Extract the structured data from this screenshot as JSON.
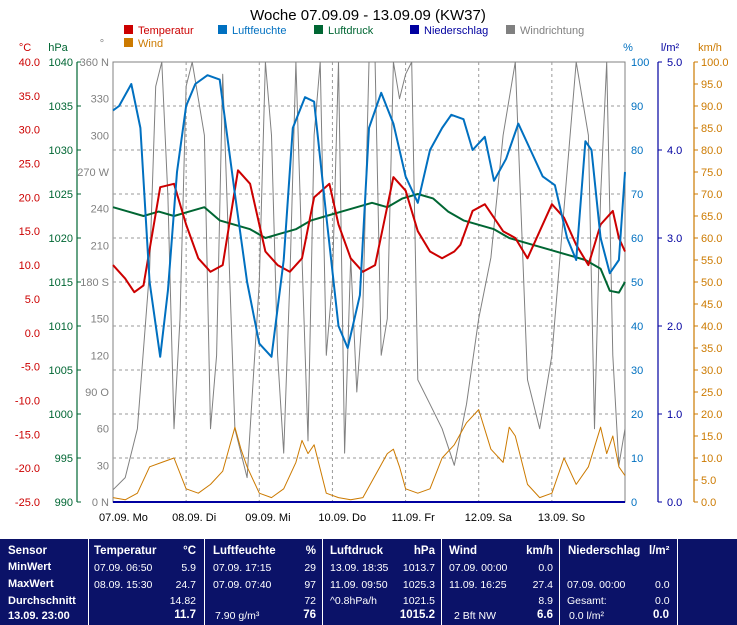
{
  "chart_data": {
    "type": "line",
    "title": "Woche 07.09.09 - 13.09.09 (KW37)",
    "x_tick_labels": [
      "07.09.  Mo",
      "08.09.  Di",
      "09.09.  Mi",
      "10.09.  Do",
      "11.09.  Fr",
      "12.09.  Sa",
      "13.09.  So"
    ],
    "x_unit": "hours since 07.09.09 00:00",
    "xlim": [
      0,
      168
    ],
    "grid": true,
    "legend_placement": "top",
    "axes": [
      {
        "id": "temp",
        "unit": "°C",
        "color": "#cc0000",
        "lim": [
          -25,
          40
        ],
        "ticks": [
          "40.0",
          "35.0",
          "30.0",
          "25.0",
          "20.0",
          "15.0",
          "10.0",
          "5.0",
          "0.0",
          "-5.0",
          "-10.0",
          "-15.0",
          "-20.0",
          "-25.0"
        ]
      },
      {
        "id": "press",
        "unit": "hPa",
        "color": "#006633",
        "lim": [
          990,
          1040
        ],
        "ticks": [
          "1040",
          "1035",
          "1030",
          "1025",
          "1020",
          "1015",
          "1010",
          "1005",
          "1000",
          "995",
          "990"
        ]
      },
      {
        "id": "dir",
        "unit": "°",
        "color": "#808080",
        "lim": [
          0,
          360
        ],
        "ticks": [
          "360 N",
          "330",
          "300",
          "270 W",
          "240",
          "210",
          "180 S",
          "150",
          "120",
          "90  O",
          "60",
          "30",
          "0  N"
        ]
      },
      {
        "id": "hum",
        "unit": "%",
        "color": "#0070c0",
        "lim": [
          0,
          100
        ],
        "ticks": [
          "100",
          "90",
          "80",
          "70",
          "60",
          "50",
          "40",
          "30",
          "20",
          "10",
          "0"
        ]
      },
      {
        "id": "rain",
        "unit": "l/m²",
        "color": "#0000a0",
        "lim": [
          0,
          5
        ],
        "ticks": [
          "5.0",
          "4.0",
          "3.0",
          "2.0",
          "1.0",
          "0.0"
        ]
      },
      {
        "id": "wind",
        "unit": "km/h",
        "color": "#cc7a00",
        "lim": [
          0,
          100
        ],
        "ticks": [
          "100.0",
          "95.0",
          "90.0",
          "85.0",
          "80.0",
          "75.0",
          "70.0",
          "65.0",
          "60.0",
          "55.0",
          "50.0",
          "45.0",
          "40.0",
          "35.0",
          "30.0",
          "25.0",
          "20.0",
          "15.0",
          "10.0",
          "5.0",
          "0.0"
        ]
      }
    ],
    "legend": [
      {
        "name": "Temperatur",
        "color": "#cc0000"
      },
      {
        "name": "Luftfeuchte",
        "color": "#0070c0"
      },
      {
        "name": "Luftdruck",
        "color": "#006633"
      },
      {
        "name": "Niederschlag",
        "color": "#0000a0"
      },
      {
        "name": "Windrichtung",
        "color": "#808080"
      },
      {
        "name": "Wind",
        "color": "#cc7a00"
      }
    ],
    "series": [
      {
        "name": "Temperatur",
        "axis": "temp",
        "color": "#cc0000",
        "x": [
          0,
          4,
          7,
          10,
          15.5,
          20,
          24,
          28,
          32,
          36,
          41,
          45,
          50,
          54,
          58,
          62,
          66,
          71,
          74,
          78,
          82,
          86,
          92,
          96,
          100,
          104,
          108,
          112,
          114,
          118,
          122,
          128,
          132,
          136,
          140,
          144,
          148,
          152,
          156,
          160,
          164,
          166,
          168
        ],
        "y": [
          10,
          8,
          6,
          7,
          21.5,
          22,
          16,
          11,
          9,
          10,
          24,
          22,
          12,
          10,
          9,
          11,
          20,
          22,
          16,
          11,
          9,
          10,
          23,
          21,
          15,
          12,
          11,
          12,
          13,
          18,
          19,
          15,
          14,
          11,
          15,
          19,
          17,
          13,
          10,
          16,
          18,
          14,
          12
        ]
      },
      {
        "name": "Luftfeuchte",
        "axis": "hum",
        "color": "#0070c0",
        "x": [
          0,
          2,
          6,
          9,
          12,
          15.5,
          18,
          21,
          24,
          27,
          31,
          35,
          40,
          44,
          48,
          52,
          56,
          59,
          63,
          66,
          70,
          74,
          77,
          81,
          84,
          88,
          92,
          96,
          100,
          104,
          108,
          111,
          115,
          118,
          122,
          125,
          129,
          133,
          137,
          141,
          145,
          149,
          152,
          155,
          157,
          160,
          163,
          166,
          168
        ],
        "y": [
          89,
          90,
          95,
          85,
          50,
          33,
          48,
          75,
          90,
          95,
          97,
          96,
          70,
          50,
          36,
          33,
          55,
          85,
          92,
          91,
          65,
          40,
          35,
          47,
          85,
          93,
          86,
          74,
          68,
          80,
          85,
          88,
          87,
          80,
          83,
          73,
          78,
          86,
          80,
          74,
          72,
          60,
          55,
          82,
          80,
          60,
          52,
          55,
          75
        ]
      },
      {
        "name": "Luftdruck",
        "axis": "press",
        "color": "#006633",
        "x": [
          0,
          5,
          10,
          15,
          20,
          25,
          30,
          35,
          40,
          45,
          50,
          55,
          60,
          65,
          70,
          75,
          80,
          85,
          90,
          95,
          100,
          105,
          110,
          115,
          120,
          125,
          130,
          135,
          140,
          145,
          150,
          155,
          160,
          163,
          166,
          168
        ],
        "y": [
          1023.5,
          1023,
          1022.5,
          1023,
          1022.5,
          1023,
          1023.5,
          1022,
          1021.5,
          1021,
          1020,
          1020.5,
          1021,
          1022,
          1022.5,
          1023,
          1023.5,
          1024,
          1023.5,
          1024.5,
          1025,
          1024.5,
          1023,
          1022,
          1021.5,
          1021,
          1020,
          1019.5,
          1019,
          1018.5,
          1018,
          1017.5,
          1016.5,
          1014,
          1013.8,
          1015
        ]
      },
      {
        "name": "Windrichtung",
        "axis": "dir",
        "color": "#808080",
        "x": [
          0,
          4,
          8,
          12,
          14,
          16,
          18,
          20,
          22,
          24,
          26,
          28,
          30,
          32,
          34,
          36,
          40,
          44,
          48,
          50,
          52,
          54,
          56,
          58,
          60,
          62,
          64,
          66,
          68,
          70,
          72,
          74,
          76,
          78,
          80,
          82,
          84,
          86,
          88,
          90,
          92,
          94,
          96,
          98,
          100,
          104,
          108,
          112,
          116,
          120,
          124,
          128,
          132,
          136,
          140,
          144,
          148,
          152,
          156,
          158,
          160,
          162,
          164,
          166,
          168
        ],
        "y": [
          10,
          20,
          60,
          190,
          340,
          360,
          250,
          60,
          150,
          340,
          360,
          330,
          300,
          60,
          120,
          350,
          60,
          20,
          180,
          360,
          300,
          120,
          40,
          180,
          360,
          200,
          50,
          300,
          360,
          120,
          180,
          360,
          40,
          200,
          90,
          160,
          360,
          360,
          120,
          150,
          360,
          330,
          350,
          360,
          100,
          80,
          60,
          30,
          80,
          150,
          200,
          300,
          360,
          100,
          60,
          120,
          240,
          360,
          300,
          60,
          250,
          360,
          120,
          30,
          60
        ]
      },
      {
        "name": "Wind",
        "axis": "wind",
        "color": "#cc7a00",
        "x": [
          0,
          4,
          8,
          12,
          16,
          20,
          24,
          28,
          32,
          36,
          38,
          40,
          42,
          44,
          48,
          52,
          56,
          60,
          62,
          64,
          66,
          70,
          74,
          78,
          82,
          86,
          90,
          92,
          94,
          96,
          100,
          104,
          108,
          112,
          116,
          120,
          124,
          128,
          130,
          132,
          136,
          140,
          144,
          148,
          152,
          156,
          160,
          162,
          164,
          166,
          168
        ],
        "y": [
          1,
          0.5,
          2,
          8,
          9,
          10,
          3,
          2,
          4,
          7,
          12,
          17,
          12,
          8,
          2,
          1,
          3,
          9,
          14,
          11,
          13,
          2,
          1,
          0.5,
          1,
          6,
          11,
          12,
          8,
          3,
          2,
          3,
          10,
          13,
          18,
          21,
          12,
          9,
          17,
          15,
          4,
          1,
          2,
          10,
          4,
          8,
          17,
          11,
          15,
          8,
          6
        ]
      },
      {
        "name": "Niederschlag",
        "axis": "rain",
        "color": "#0000a0",
        "x": [
          0,
          168
        ],
        "y": [
          0,
          0
        ]
      }
    ]
  },
  "summary": {
    "sensor": {
      "header": "Sensor",
      "row1": "MinWert",
      "row2": "MaxWert",
      "row3": "Durchschnitt",
      "row4": "13.09.  23:00"
    },
    "temperature": {
      "header": "Temperatur",
      "unit": "°C",
      "min_time": "07.09.  06:50",
      "min_val": "5.9",
      "max_time": "08.09.  15:30",
      "max_val": "24.7",
      "avg": "14.82",
      "current": "11.7"
    },
    "humidity": {
      "header": "Luftfeuchte",
      "unit": "%",
      "min_time": "07.09.  17:15",
      "min_val": "29",
      "max_time": "07.09.  07:40",
      "max_val": "97",
      "avg": "72",
      "abs": "7.90 g/m³",
      "current": "76"
    },
    "pressure": {
      "header": "Luftdruck",
      "unit": "hPa",
      "min_time": "13.09.  18:35",
      "min_val": "1013.7",
      "max_time": "11.09.  09:50",
      "max_val": "1025.3",
      "trend": "^0.8hPa/h",
      "avg": "1021.5",
      "current": "1015.2"
    },
    "wind": {
      "header": "Wind",
      "unit": "km/h",
      "min_time": "07.09.  00:00",
      "min_val": "0.0",
      "max_time": "11.09.  16:25",
      "max_val": "27.4",
      "avg": "8.9",
      "dir": "2 Bft NW",
      "current": "6.6"
    },
    "rain": {
      "header": "Niederschlag",
      "unit": "l/m²",
      "time": "07.09.  00:00",
      "val": "0.0",
      "total_label": "Gesamt:",
      "total": "0.0",
      "current": "0.0 l/m²",
      "current_val": "0.0"
    }
  }
}
